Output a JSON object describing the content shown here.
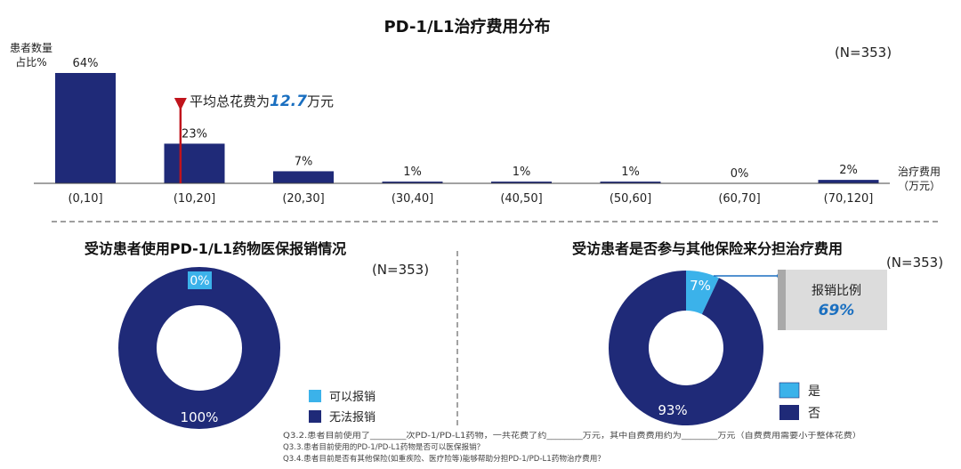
{
  "chart_data": [
    {
      "type": "bar",
      "title": "PD-1/L1治疗费用分布",
      "n_label": "(N=353)",
      "ylabel": [
        "患者数量",
        "占比%"
      ],
      "xlabel": [
        "治疗费用",
        "（万元）"
      ],
      "categories": [
        "(0,10]",
        "(10,20]",
        "(20,30]",
        "(30,40]",
        "(40,50]",
        "(50,60]",
        "(60,70]",
        "(70,120]"
      ],
      "values": [
        64,
        23,
        7,
        1,
        1,
        1,
        0,
        2
      ],
      "value_labels": [
        "64%",
        "23%",
        "7%",
        "1%",
        "1%",
        "1%",
        "0%",
        "2%"
      ],
      "ylim": [
        0,
        64
      ],
      "annotation": {
        "prefix": "平均总花费为",
        "value": "12.7",
        "suffix": "万元",
        "x_value": 12.7
      },
      "colors": {
        "bar": "#1f2a78",
        "marker": "#c0141c",
        "accent": "#1a6fc0"
      }
    },
    {
      "type": "pie",
      "style": "donut",
      "title": "受访患者使用PD-1/L1药物医保报销情况",
      "n_label": "(N=353)",
      "slices": [
        {
          "label": "可以报销",
          "value": 0,
          "display": "0%",
          "color": "#3bb2ea"
        },
        {
          "label": "无法报销",
          "value": 100,
          "display": "100%",
          "color": "#1f2a78"
        }
      ]
    },
    {
      "type": "pie",
      "style": "donut",
      "title": "受访患者是否参与其他保险来分担治疗费用",
      "n_label": "(N=353)",
      "slices": [
        {
          "label": "是",
          "value": 7,
          "display": "7%",
          "color": "#3bb2ea"
        },
        {
          "label": "否",
          "value": 93,
          "display": "93%",
          "color": "#1f2a78"
        }
      ],
      "callout": {
        "label": "报销比例",
        "value": "69%"
      }
    }
  ],
  "footnotes": [
    "Q3.2.患者目前使用了________次PD-1/PD-L1药物，一共花费了约________万元，其中自费费用约为________万元（自费费用需要小于整体花费）",
    "Q3.3.患者目前使用的PD-1/PD-L1药物是否可以医保报销？",
    "Q3.4.患者目前是否有其他保险(如重疾险、医疗险等)能够帮助分担PD-1/PD-L1药物治疗费用？"
  ]
}
